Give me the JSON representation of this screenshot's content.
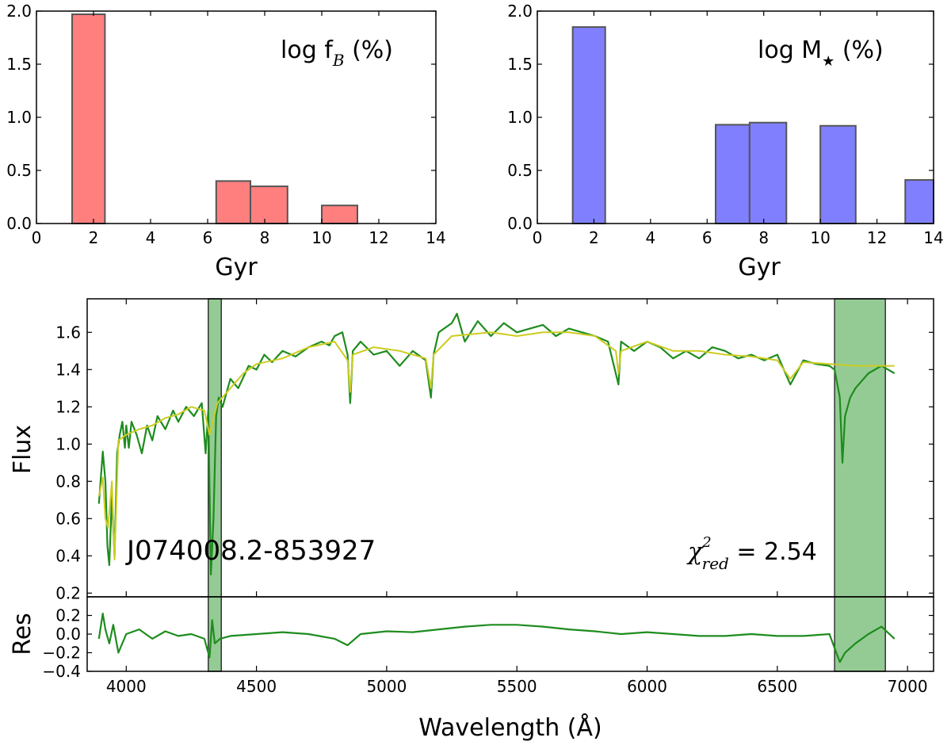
{
  "chart_data": [
    {
      "type": "bar",
      "id": "hist_fB",
      "annotation": {
        "prefix": "log f",
        "sub": "B",
        "suffix": " (%)"
      },
      "xlabel": "Gyr",
      "ylabel": "",
      "xlim": [
        0,
        14
      ],
      "ylim": [
        0,
        2.0
      ],
      "xticks": [
        "0",
        "2",
        "4",
        "6",
        "8",
        "10",
        "12",
        "14"
      ],
      "yticks": [
        "0.0",
        "0.5",
        "1.0",
        "1.5",
        "2.0"
      ],
      "bar_color": "#ff7f7f",
      "bars": [
        {
          "x0": 1.25,
          "x1": 2.4,
          "value": 1.97
        },
        {
          "x0": 6.3,
          "x1": 7.5,
          "value": 0.4
        },
        {
          "x0": 7.5,
          "x1": 8.8,
          "value": 0.35
        },
        {
          "x0": 10.0,
          "x1": 11.25,
          "value": 0.17
        }
      ]
    },
    {
      "type": "bar",
      "id": "hist_Mstar",
      "annotation": {
        "prefix": "log M",
        "sub": "★",
        "suffix": " (%)"
      },
      "xlabel": "Gyr",
      "ylabel": "",
      "xlim": [
        0,
        14
      ],
      "ylim": [
        0,
        2.0
      ],
      "xticks": [
        "0",
        "2",
        "4",
        "6",
        "8",
        "10",
        "12",
        "14"
      ],
      "yticks": [
        "0.0",
        "0.5",
        "1.0",
        "1.5",
        "2.0"
      ],
      "bar_color": "#8080ff",
      "bars": [
        {
          "x0": 1.25,
          "x1": 2.4,
          "value": 1.85
        },
        {
          "x0": 6.3,
          "x1": 7.5,
          "value": 0.93
        },
        {
          "x0": 7.5,
          "x1": 8.8,
          "value": 0.95
        },
        {
          "x0": 10.0,
          "x1": 11.25,
          "value": 0.92
        },
        {
          "x0": 13.0,
          "x1": 14.0,
          "value": 0.41
        }
      ]
    },
    {
      "type": "line",
      "id": "spectrum",
      "object_label": "J074008.2-853927",
      "chi2": {
        "symbol": "χ",
        "sup": "2",
        "sub": "red",
        "eq": " =  2.54"
      },
      "xlabel": "Wavelength (Å)",
      "xlim": [
        3850,
        7100
      ],
      "xticks": [
        4000,
        4500,
        5000,
        5500,
        6000,
        6500,
        7000
      ],
      "flux_panel": {
        "ylabel": "Flux",
        "ylim": [
          0.18,
          1.78
        ],
        "yticks": [
          "0.2",
          "0.4",
          "0.6",
          "0.8",
          "1.0",
          "1.2",
          "1.4",
          "1.6"
        ]
      },
      "res_panel": {
        "ylabel": "Res",
        "ylim": [
          -0.4,
          0.4
        ],
        "yticks": [
          "0.2",
          "0.0",
          "−0.2",
          "−0.4"
        ]
      },
      "masked_regions": [
        [
          4315,
          4365
        ],
        [
          6720,
          6915
        ]
      ],
      "masked_color": "#5aaf5a",
      "series": [
        {
          "role": "observed",
          "color": "#1e8c1e",
          "x": [
            3895,
            3910,
            3920,
            3928,
            3935,
            3945,
            3955,
            3965,
            3975,
            3985,
            3995,
            4000,
            4010,
            4020,
            4040,
            4060,
            4080,
            4100,
            4120,
            4150,
            4180,
            4200,
            4230,
            4260,
            4290,
            4305,
            4315,
            4325,
            4335,
            4345,
            4355,
            4370,
            4400,
            4430,
            4470,
            4500,
            4530,
            4560,
            4600,
            4650,
            4700,
            4750,
            4780,
            4800,
            4830,
            4850,
            4860,
            4870,
            4900,
            4950,
            5000,
            5050,
            5100,
            5150,
            5170,
            5180,
            5200,
            5250,
            5270,
            5300,
            5350,
            5400,
            5450,
            5500,
            5550,
            5600,
            5650,
            5700,
            5750,
            5800,
            5850,
            5890,
            5900,
            5950,
            6000,
            6050,
            6100,
            6150,
            6200,
            6250,
            6300,
            6350,
            6400,
            6450,
            6500,
            6550,
            6600,
            6650,
            6700,
            6720,
            6740,
            6750,
            6760,
            6780,
            6800,
            6850,
            6900,
            6950
          ],
          "y": [
            0.68,
            0.96,
            0.8,
            0.45,
            0.35,
            0.72,
            0.4,
            0.95,
            1.05,
            1.12,
            0.98,
            1.1,
            0.98,
            1.12,
            1.05,
            0.95,
            1.1,
            1.02,
            1.15,
            1.08,
            1.18,
            1.12,
            1.2,
            1.15,
            1.22,
            0.95,
            1.18,
            0.3,
            0.6,
            1.15,
            1.25,
            1.2,
            1.35,
            1.3,
            1.42,
            1.4,
            1.48,
            1.44,
            1.5,
            1.47,
            1.52,
            1.55,
            1.53,
            1.58,
            1.6,
            1.48,
            1.22,
            1.5,
            1.55,
            1.48,
            1.5,
            1.42,
            1.5,
            1.45,
            1.25,
            1.48,
            1.6,
            1.65,
            1.7,
            1.55,
            1.66,
            1.58,
            1.65,
            1.6,
            1.62,
            1.64,
            1.58,
            1.62,
            1.6,
            1.58,
            1.55,
            1.32,
            1.55,
            1.5,
            1.55,
            1.52,
            1.46,
            1.5,
            1.46,
            1.52,
            1.5,
            1.46,
            1.48,
            1.45,
            1.48,
            1.32,
            1.45,
            1.43,
            1.42,
            1.4,
            1.25,
            0.9,
            1.15,
            1.25,
            1.3,
            1.38,
            1.42,
            1.38
          ]
        },
        {
          "role": "model",
          "color": "#cccc22",
          "x": [
            3895,
            3910,
            3920,
            3930,
            3945,
            3955,
            3970,
            4000,
            4050,
            4100,
            4150,
            4200,
            4250,
            4300,
            4320,
            4350,
            4400,
            4450,
            4500,
            4600,
            4700,
            4800,
            4850,
            4860,
            4870,
            4950,
            5050,
            5150,
            5170,
            5180,
            5250,
            5400,
            5500,
            5600,
            5700,
            5800,
            5880,
            5890,
            5900,
            6000,
            6100,
            6200,
            6300,
            6400,
            6500,
            6550,
            6600,
            6700,
            6800,
            6950
          ],
          "y": [
            0.72,
            0.82,
            0.6,
            0.55,
            0.8,
            0.38,
            1.02,
            1.05,
            1.08,
            1.1,
            1.14,
            1.16,
            1.2,
            1.18,
            1.05,
            1.22,
            1.3,
            1.38,
            1.43,
            1.46,
            1.52,
            1.55,
            1.45,
            1.28,
            1.48,
            1.52,
            1.5,
            1.46,
            1.3,
            1.48,
            1.58,
            1.6,
            1.58,
            1.6,
            1.6,
            1.58,
            1.5,
            1.38,
            1.5,
            1.55,
            1.5,
            1.5,
            1.48,
            1.47,
            1.45,
            1.35,
            1.44,
            1.43,
            1.42,
            1.42
          ]
        },
        {
          "role": "residual",
          "color": "#1e8c1e",
          "x": [
            3895,
            3910,
            3920,
            3935,
            3950,
            3970,
            4000,
            4050,
            4100,
            4150,
            4200,
            4250,
            4300,
            4320,
            4330,
            4340,
            4360,
            4400,
            4500,
            4600,
            4700,
            4800,
            4850,
            4900,
            5000,
            5100,
            5200,
            5300,
            5400,
            5500,
            5600,
            5700,
            5800,
            5900,
            6000,
            6100,
            6200,
            6300,
            6400,
            6500,
            6600,
            6700,
            6720,
            6740,
            6760,
            6800,
            6850,
            6900,
            6950
          ],
          "y": [
            -0.05,
            0.22,
            0.05,
            -0.1,
            0.1,
            -0.2,
            0.0,
            0.05,
            -0.05,
            0.03,
            -0.02,
            0.0,
            -0.05,
            -0.25,
            0.15,
            -0.1,
            -0.05,
            -0.02,
            0.0,
            0.02,
            0.0,
            -0.05,
            -0.12,
            0.0,
            0.03,
            0.02,
            0.05,
            0.08,
            0.1,
            0.1,
            0.08,
            0.05,
            0.03,
            0.0,
            0.02,
            0.0,
            -0.02,
            -0.02,
            0.0,
            -0.02,
            -0.02,
            0.0,
            -0.15,
            -0.3,
            -0.2,
            -0.1,
            0.0,
            0.08,
            -0.05
          ]
        }
      ]
    }
  ]
}
